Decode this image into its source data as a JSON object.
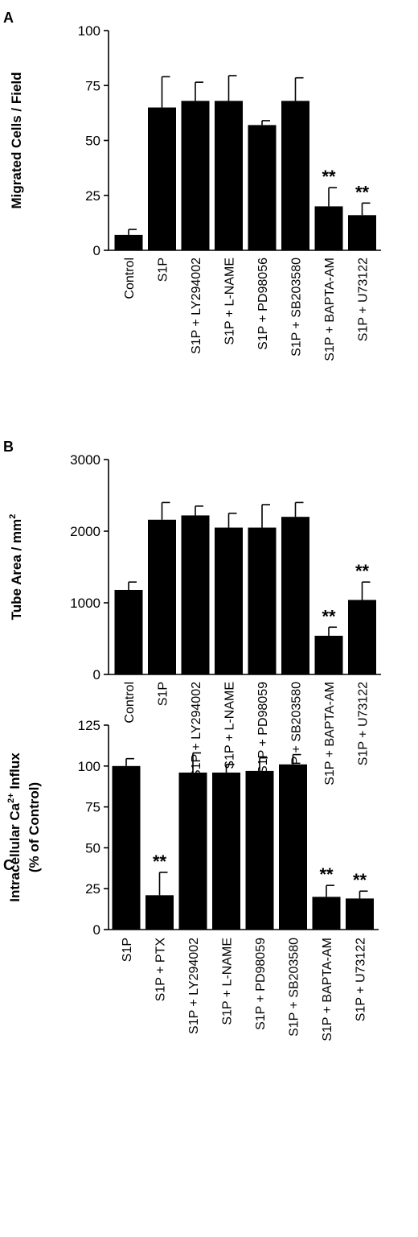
{
  "chart_data": [
    {
      "type": "bar",
      "panel_label": "A",
      "ylabel": "Migrated Cells / Field",
      "ylabel_superscript": "",
      "ylabel_suffix": "",
      "ylabel_line2": "",
      "ylim": [
        0,
        100
      ],
      "yticks": [
        "0",
        "25",
        "50",
        "75",
        "100"
      ],
      "categories": [
        "Control",
        "S1P",
        "S1P + LY294002",
        "S1P + L-NAME",
        "S1P + PD98056",
        "S1P + SB203580",
        "S1P + BAPTA-AM",
        "S1P + U73122"
      ],
      "values": [
        7,
        65,
        68,
        68,
        57,
        68,
        20,
        16
      ],
      "errors": [
        2.5,
        14,
        8.5,
        11.5,
        2,
        10.5,
        8.5,
        5.5
      ],
      "annotations": [
        "",
        "",
        "",
        "",
        "",
        "",
        "**",
        "**"
      ]
    },
    {
      "type": "bar",
      "panel_label": "B",
      "ylabel": "Tube Area / mm",
      "ylabel_superscript": "2",
      "ylabel_suffix": "",
      "ylabel_line2": "",
      "ylim": [
        0,
        3000
      ],
      "yticks": [
        "0",
        "1000",
        "2000",
        "3000"
      ],
      "categories": [
        "Control",
        "S1P",
        "S1P + LY294002",
        "S1P + L-NAME",
        "S1P + PD98059",
        "S1P + SB203580",
        "S1P + BAPTA-AM",
        "S1P + U73122"
      ],
      "values": [
        1180,
        2160,
        2220,
        2050,
        2050,
        2200,
        540,
        1040
      ],
      "errors": [
        110,
        240,
        130,
        200,
        320,
        200,
        120,
        250
      ],
      "annotations": [
        "",
        "",
        "",
        "",
        "",
        "",
        "**",
        "**"
      ]
    },
    {
      "type": "bar",
      "panel_label": "C",
      "ylabel": "Intracellular Ca",
      "ylabel_superscript": "2+",
      "ylabel_suffix": " Influx",
      "ylabel_line2": "(% of Control)",
      "ylim": [
        0,
        125
      ],
      "yticks": [
        "0",
        "25",
        "50",
        "75",
        "100",
        "125"
      ],
      "categories": [
        "S1P",
        "S1P + PTX",
        "S1P + LY294002",
        "S1P + L-NAME",
        "S1P + PD98059",
        "S1P + SB203580",
        "S1P + BAPTA-AM",
        "S1P + U73122"
      ],
      "values": [
        100,
        21,
        96,
        96,
        97,
        101,
        20,
        19
      ],
      "errors": [
        4.5,
        14,
        12,
        5,
        8,
        6,
        7,
        4.5
      ],
      "annotations": [
        "",
        "**",
        "",
        "",
        "",
        "",
        "**",
        "**"
      ]
    }
  ]
}
